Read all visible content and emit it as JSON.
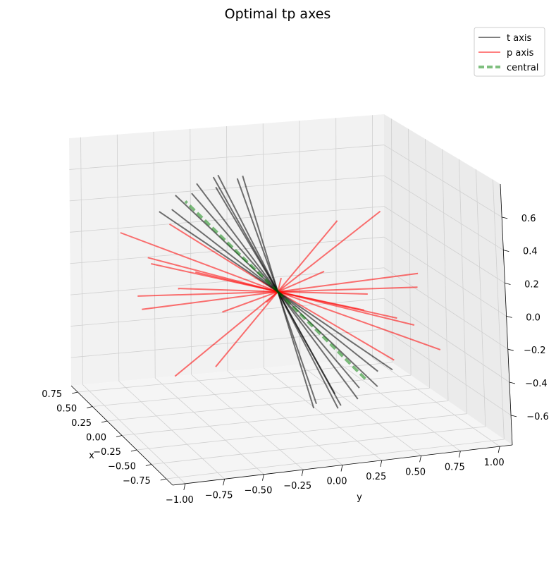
{
  "chart_data": {
    "type": "line3d",
    "title": "Optimal tp axes",
    "xlabel": "x",
    "ylabel": "y",
    "zlabel": "",
    "x_ticks": [
      -0.75,
      -0.5,
      -0.25,
      0.0,
      0.25,
      0.5,
      0.75
    ],
    "x_tick_labels": [
      "−0.75",
      "−0.50",
      "−0.25",
      "0.00",
      "0.25",
      "0.50",
      "0.75"
    ],
    "y_ticks": [
      -1.0,
      -0.75,
      -0.5,
      -0.25,
      0.0,
      0.25,
      0.5,
      0.75,
      1.0
    ],
    "y_tick_labels": [
      "−1.00",
      "−0.75",
      "−0.50",
      "−0.25",
      "0.00",
      "0.25",
      "0.50",
      "0.75",
      "1.00"
    ],
    "z_ticks": [
      -0.6,
      -0.4,
      -0.2,
      0.0,
      0.2,
      0.4,
      0.6
    ],
    "z_tick_labels": [
      "−0.6",
      "−0.4",
      "−0.2",
      "0.0",
      "0.2",
      "0.4",
      "0.6"
    ],
    "xlim": [
      -0.86,
      0.86
    ],
    "ylim": [
      -1.08,
      1.08
    ],
    "zlim": [
      -0.78,
      0.8
    ],
    "grid": true,
    "legend_position": "top-right",
    "legend": [
      {
        "label": "t axis",
        "color": "#000000",
        "style": "solid"
      },
      {
        "label": "p axis",
        "color": "#ff0000",
        "style": "solid"
      },
      {
        "label": "central",
        "color": "#008000",
        "style": "dashed"
      }
    ],
    "series": [
      {
        "name": "central",
        "color": "#008000",
        "segments": [
          {
            "start": [
              0,
              0,
              0
            ],
            "end": [
              0.0,
              -0.55,
              0.6
            ]
          },
          {
            "start": [
              0,
              0,
              0
            ],
            "end": [
              0.0,
              0.55,
              -0.6
            ]
          }
        ]
      },
      {
        "name": "t axis",
        "color": "#000000",
        "segments": [
          {
            "start": [
              0,
              0,
              0
            ],
            "end": [
              0.0,
              -0.72,
              0.55
            ]
          },
          {
            "start": [
              0,
              0,
              0
            ],
            "end": [
              0.04,
              -0.6,
              0.63
            ]
          },
          {
            "start": [
              0,
              0,
              0
            ],
            "end": [
              -0.05,
              -0.52,
              0.66
            ]
          },
          {
            "start": [
              0,
              0,
              0
            ],
            "end": [
              0.08,
              -0.45,
              0.68
            ]
          },
          {
            "start": [
              0,
              0,
              0
            ],
            "end": [
              -0.1,
              -0.38,
              0.7
            ]
          },
          {
            "start": [
              0,
              0,
              0
            ],
            "end": [
              0.12,
              -0.3,
              0.71
            ]
          },
          {
            "start": [
              0,
              0,
              0
            ],
            "end": [
              -0.02,
              -0.22,
              0.72
            ]
          },
          {
            "start": [
              0,
              0,
              0
            ],
            "end": [
              0.1,
              -0.15,
              0.7
            ]
          },
          {
            "start": [
              0,
              0,
              0
            ],
            "end": [
              -0.08,
              -0.66,
              0.58
            ]
          },
          {
            "start": [
              0,
              0,
              0
            ],
            "end": [
              0.05,
              -0.35,
              0.72
            ]
          },
          {
            "start": [
              0,
              0,
              0
            ],
            "end": [
              0.0,
              0.72,
              -0.55
            ]
          },
          {
            "start": [
              0,
              0,
              0
            ],
            "end": [
              -0.04,
              0.6,
              -0.63
            ]
          },
          {
            "start": [
              0,
              0,
              0
            ],
            "end": [
              0.05,
              0.52,
              -0.66
            ]
          },
          {
            "start": [
              0,
              0,
              0
            ],
            "end": [
              -0.08,
              0.45,
              -0.68
            ]
          },
          {
            "start": [
              0,
              0,
              0
            ],
            "end": [
              0.1,
              0.38,
              -0.7
            ]
          },
          {
            "start": [
              0,
              0,
              0
            ],
            "end": [
              -0.12,
              0.3,
              -0.71
            ]
          },
          {
            "start": [
              0,
              0,
              0
            ],
            "end": [
              0.02,
              0.22,
              -0.72
            ]
          },
          {
            "start": [
              0,
              0,
              0
            ],
            "end": [
              -0.1,
              0.15,
              -0.7
            ]
          },
          {
            "start": [
              0,
              0,
              0
            ],
            "end": [
              0.08,
              0.66,
              -0.58
            ]
          },
          {
            "start": [
              0,
              0,
              0
            ],
            "end": [
              -0.05,
              0.35,
              -0.72
            ]
          }
        ]
      },
      {
        "name": "p axis",
        "color": "#ff0000",
        "segments": [
          {
            "start": [
              0,
              0,
              0
            ],
            "end": [
              -0.6,
              -0.55,
              0.1
            ]
          },
          {
            "start": [
              0,
              0,
              0
            ],
            "end": [
              -0.4,
              -0.75,
              0.2
            ]
          },
          {
            "start": [
              0,
              0,
              0
            ],
            "end": [
              -0.2,
              -0.85,
              0.3
            ]
          },
          {
            "start": [
              0,
              0,
              0
            ],
            "end": [
              0.0,
              -0.9,
              0.05
            ]
          },
          {
            "start": [
              0,
              0,
              0
            ],
            "end": [
              0.2,
              -0.82,
              -0.1
            ]
          },
          {
            "start": [
              0,
              0,
              0
            ],
            "end": [
              0.4,
              -0.7,
              0.15
            ]
          },
          {
            "start": [
              0,
              0,
              0
            ],
            "end": [
              0.55,
              -0.5,
              0.3
            ]
          },
          {
            "start": [
              0,
              0,
              0
            ],
            "end": [
              0.65,
              -0.3,
              -0.05
            ]
          },
          {
            "start": [
              0,
              0,
              0
            ],
            "end": [
              -0.7,
              -0.2,
              0.3
            ]
          },
          {
            "start": [
              0,
              0,
              0
            ],
            "end": [
              -0.5,
              -0.6,
              -0.25
            ]
          },
          {
            "start": [
              0,
              0,
              0
            ],
            "end": [
              0.3,
              -0.9,
              0.35
            ]
          },
          {
            "start": [
              0,
              0,
              0
            ],
            "end": [
              -0.3,
              -0.8,
              -0.35
            ]
          },
          {
            "start": [
              0,
              0,
              0
            ],
            "end": [
              0.6,
              0.55,
              -0.1
            ]
          },
          {
            "start": [
              0,
              0,
              0
            ],
            "end": [
              0.4,
              0.75,
              -0.2
            ]
          },
          {
            "start": [
              0,
              0,
              0
            ],
            "end": [
              0.2,
              0.85,
              -0.3
            ]
          },
          {
            "start": [
              0,
              0,
              0
            ],
            "end": [
              0.0,
              0.9,
              -0.05
            ]
          },
          {
            "start": [
              0,
              0,
              0
            ],
            "end": [
              -0.2,
              0.82,
              0.1
            ]
          },
          {
            "start": [
              0,
              0,
              0
            ],
            "end": [
              -0.4,
              0.7,
              -0.15
            ]
          },
          {
            "start": [
              0,
              0,
              0
            ],
            "end": [
              -0.55,
              0.5,
              -0.3
            ]
          },
          {
            "start": [
              0,
              0,
              0
            ],
            "end": [
              -0.65,
              0.3,
              0.05
            ]
          },
          {
            "start": [
              0,
              0,
              0
            ],
            "end": [
              0.7,
              0.2,
              -0.3
            ]
          },
          {
            "start": [
              0,
              0,
              0
            ],
            "end": [
              0.5,
              0.6,
              0.25
            ]
          },
          {
            "start": [
              0,
              0,
              0
            ],
            "end": [
              -0.3,
              0.9,
              -0.35
            ]
          },
          {
            "start": [
              0,
              0,
              0
            ],
            "end": [
              0.3,
              0.8,
              0.35
            ]
          }
        ]
      }
    ]
  }
}
